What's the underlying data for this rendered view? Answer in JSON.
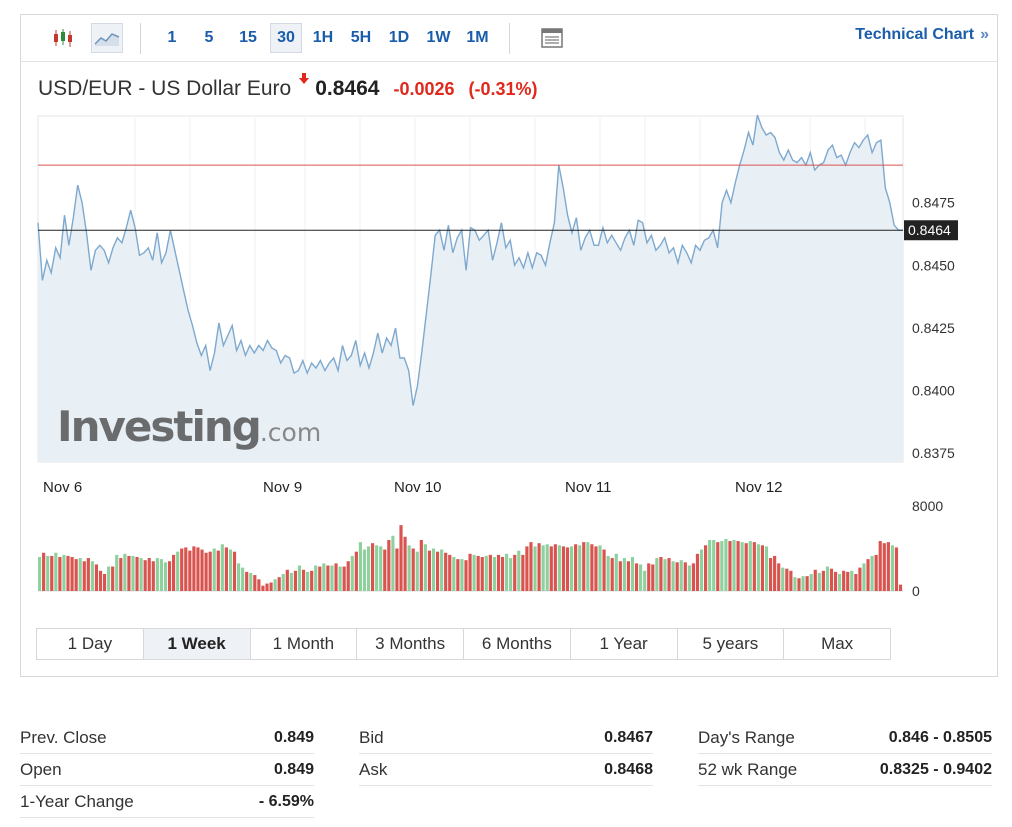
{
  "toolbar": {
    "intervals": [
      "1",
      "5",
      "15",
      "30",
      "1H",
      "5H",
      "1D",
      "1W",
      "1M"
    ],
    "active_interval": "30",
    "technical_chart_label": "Technical Chart",
    "icons": [
      "candlestick-icon",
      "area-chart-icon",
      "table-icon"
    ]
  },
  "quote": {
    "name": "USD/EUR - US Dollar Euro",
    "direction": "down",
    "last": "0.8464",
    "change": "-0.0026",
    "change_pct": "(-0.31%)"
  },
  "watermark": {
    "main": "Investing",
    "suffix": ".com"
  },
  "colors": {
    "up_volume": "#8fd19e",
    "down_volume": "#d9534f",
    "line": "#7ea9cf",
    "area": "#e8eff5",
    "prev_close_line": "#d9534f",
    "last_line": "#222222",
    "link": "#1a5dab",
    "negative": "#e0291c"
  },
  "chart_data": {
    "type": "area",
    "price": {
      "y_ticks": [
        0.8375,
        0.84,
        0.8425,
        0.845,
        0.8475
      ],
      "y_tick_labels": [
        "0.8375",
        "0.8400",
        "0.8425",
        "0.8450",
        "0.8475"
      ],
      "ylim": [
        0.83715,
        0.85096
      ],
      "prev_close_level": 0.849,
      "last_level": 0.8464,
      "last_label": "0.8464",
      "x_labels": [
        "Nov 6",
        "Nov 9",
        "Nov 10",
        "Nov 11",
        "Nov 12"
      ],
      "values": [
        0.8467,
        0.8444,
        0.8452,
        0.8447,
        0.8457,
        0.8453,
        0.847,
        0.8458,
        0.8469,
        0.8482,
        0.8475,
        0.8463,
        0.8448,
        0.8456,
        0.8458,
        0.8456,
        0.8451,
        0.8457,
        0.8461,
        0.8459,
        0.8465,
        0.8472,
        0.8465,
        0.8454,
        0.8455,
        0.8457,
        0.8452,
        0.8463,
        0.8451,
        0.8455,
        0.8464,
        0.8456,
        0.8448,
        0.844,
        0.8432,
        0.8426,
        0.8419,
        0.8414,
        0.8418,
        0.8408,
        0.8415,
        0.8427,
        0.8418,
        0.8422,
        0.8426,
        0.8416,
        0.842,
        0.8414,
        0.8418,
        0.8415,
        0.8418,
        0.8416,
        0.842,
        0.8417,
        0.8416,
        0.8411,
        0.8414,
        0.8413,
        0.8407,
        0.8408,
        0.8412,
        0.8407,
        0.8411,
        0.8409,
        0.8412,
        0.8408,
        0.8411,
        0.8413,
        0.8408,
        0.8418,
        0.8412,
        0.8414,
        0.842,
        0.841,
        0.8415,
        0.8409,
        0.8415,
        0.8423,
        0.8415,
        0.8421,
        0.8418,
        0.8425,
        0.8413,
        0.8413,
        0.8408,
        0.8394,
        0.8402,
        0.8416,
        0.8431,
        0.8446,
        0.8462,
        0.8464,
        0.8456,
        0.8466,
        0.8455,
        0.8461,
        0.8464,
        0.8448,
        0.8465,
        0.8464,
        0.846,
        0.8462,
        0.8464,
        0.8452,
        0.8459,
        0.8467,
        0.8457,
        0.846,
        0.845,
        0.8453,
        0.8449,
        0.8455,
        0.8449,
        0.8455,
        0.8454,
        0.845,
        0.8459,
        0.8467,
        0.849,
        0.8481,
        0.847,
        0.8463,
        0.8469,
        0.8456,
        0.8461,
        0.8464,
        0.8458,
        0.8458,
        0.8465,
        0.8459,
        0.8462,
        0.8459,
        0.8456,
        0.8461,
        0.8464,
        0.8458,
        0.8468,
        0.8467,
        0.8459,
        0.8462,
        0.8456,
        0.8458,
        0.8461,
        0.8455,
        0.8457,
        0.8451,
        0.8458,
        0.8455,
        0.8451,
        0.8458,
        0.8456,
        0.846,
        0.8461,
        0.8464,
        0.8457,
        0.8475,
        0.848,
        0.8475,
        0.8483,
        0.849,
        0.8496,
        0.8503,
        0.8498,
        0.851,
        0.8505,
        0.8502,
        0.8503,
        0.8501,
        0.8495,
        0.8492,
        0.8496,
        0.8492,
        0.8491,
        0.8493,
        0.849,
        0.8495,
        0.8488,
        0.849,
        0.8491,
        0.8496,
        0.8498,
        0.8493,
        0.8494,
        0.849,
        0.8495,
        0.8499,
        0.8497,
        0.85,
        0.8502,
        0.8495,
        0.8499,
        0.85,
        0.8481,
        0.8475,
        0.8466,
        0.8464,
        0.8464
      ]
    },
    "volume": {
      "y_ticks": [
        0,
        8000
      ],
      "y_tick_labels": [
        "0",
        "8000"
      ],
      "ylim": [
        0,
        8000
      ],
      "bars": [
        [
          3200,
          1
        ],
        [
          3600,
          0
        ],
        [
          3300,
          1
        ],
        [
          3300,
          0
        ],
        [
          3600,
          1
        ],
        [
          3200,
          0
        ],
        [
          3400,
          1
        ],
        [
          3300,
          0
        ],
        [
          3200,
          0
        ],
        [
          3000,
          0
        ],
        [
          3100,
          1
        ],
        [
          2800,
          0
        ],
        [
          3100,
          0
        ],
        [
          2800,
          1
        ],
        [
          2500,
          0
        ],
        [
          1900,
          0
        ],
        [
          1600,
          0
        ],
        [
          2300,
          1
        ],
        [
          2300,
          0
        ],
        [
          3400,
          1
        ],
        [
          3100,
          0
        ],
        [
          3500,
          1
        ],
        [
          3300,
          0
        ],
        [
          3300,
          1
        ],
        [
          3200,
          0
        ],
        [
          3100,
          1
        ],
        [
          2900,
          0
        ],
        [
          3100,
          0
        ],
        [
          2800,
          0
        ],
        [
          3100,
          1
        ],
        [
          3000,
          1
        ],
        [
          2700,
          1
        ],
        [
          2800,
          0
        ],
        [
          3400,
          0
        ],
        [
          3700,
          1
        ],
        [
          4000,
          0
        ],
        [
          4100,
          0
        ],
        [
          3800,
          0
        ],
        [
          4200,
          0
        ],
        [
          4100,
          0
        ],
        [
          3900,
          0
        ],
        [
          3600,
          0
        ],
        [
          3700,
          0
        ],
        [
          4000,
          1
        ],
        [
          3800,
          0
        ],
        [
          4400,
          1
        ],
        [
          4100,
          0
        ],
        [
          3900,
          1
        ],
        [
          3700,
          0
        ],
        [
          2600,
          1
        ],
        [
          2200,
          1
        ],
        [
          1800,
          0
        ],
        [
          1700,
          1
        ],
        [
          1500,
          0
        ],
        [
          1100,
          0
        ],
        [
          500,
          0
        ],
        [
          700,
          0
        ],
        [
          800,
          0
        ],
        [
          1100,
          1
        ],
        [
          1300,
          0
        ],
        [
          1600,
          1
        ],
        [
          2000,
          0
        ],
        [
          1700,
          1
        ],
        [
          1900,
          0
        ],
        [
          2400,
          1
        ],
        [
          2000,
          0
        ],
        [
          1800,
          1
        ],
        [
          1900,
          0
        ],
        [
          2400,
          1
        ],
        [
          2300,
          0
        ],
        [
          2600,
          1
        ],
        [
          2400,
          0
        ],
        [
          2400,
          1
        ],
        [
          2600,
          0
        ],
        [
          2300,
          1
        ],
        [
          2300,
          0
        ],
        [
          2800,
          0
        ],
        [
          3300,
          1
        ],
        [
          3700,
          0
        ],
        [
          4600,
          1
        ],
        [
          3900,
          1
        ],
        [
          4200,
          1
        ],
        [
          4500,
          0
        ],
        [
          4300,
          1
        ],
        [
          4200,
          1
        ],
        [
          3900,
          0
        ],
        [
          4800,
          0
        ],
        [
          5200,
          1
        ],
        [
          4000,
          0
        ],
        [
          6200,
          0
        ],
        [
          5100,
          0
        ],
        [
          4300,
          1
        ],
        [
          4000,
          0
        ],
        [
          3700,
          1
        ],
        [
          4800,
          0
        ],
        [
          4400,
          1
        ],
        [
          3800,
          0
        ],
        [
          4000,
          1
        ],
        [
          3700,
          0
        ],
        [
          3900,
          1
        ],
        [
          3600,
          0
        ],
        [
          3400,
          0
        ],
        [
          3200,
          1
        ],
        [
          3000,
          0
        ],
        [
          3000,
          1
        ],
        [
          2900,
          0
        ],
        [
          3500,
          0
        ],
        [
          3400,
          1
        ],
        [
          3300,
          0
        ],
        [
          3200,
          0
        ],
        [
          3300,
          1
        ],
        [
          3400,
          0
        ],
        [
          3200,
          1
        ],
        [
          3400,
          0
        ],
        [
          3200,
          0
        ],
        [
          3500,
          1
        ],
        [
          3100,
          1
        ],
        [
          3400,
          0
        ],
        [
          3800,
          1
        ],
        [
          3400,
          0
        ],
        [
          4200,
          0
        ],
        [
          4600,
          0
        ],
        [
          4200,
          1
        ],
        [
          4500,
          0
        ],
        [
          4300,
          1
        ],
        [
          4400,
          1
        ],
        [
          4200,
          0
        ],
        [
          4400,
          0
        ],
        [
          4300,
          1
        ],
        [
          4200,
          0
        ],
        [
          4100,
          0
        ],
        [
          4200,
          1
        ],
        [
          4400,
          0
        ],
        [
          4300,
          1
        ],
        [
          4600,
          0
        ],
        [
          4600,
          1
        ],
        [
          4400,
          0
        ],
        [
          4200,
          0
        ],
        [
          4300,
          1
        ],
        [
          3900,
          0
        ],
        [
          3300,
          1
        ],
        [
          3100,
          0
        ],
        [
          3500,
          1
        ],
        [
          2800,
          0
        ],
        [
          3100,
          1
        ],
        [
          2800,
          0
        ],
        [
          3200,
          1
        ],
        [
          2600,
          0
        ],
        [
          2500,
          1
        ],
        [
          1900,
          1
        ],
        [
          2600,
          0
        ],
        [
          2500,
          0
        ],
        [
          3100,
          1
        ],
        [
          3200,
          0
        ],
        [
          3000,
          1
        ],
        [
          3100,
          0
        ],
        [
          2800,
          1
        ],
        [
          2700,
          0
        ],
        [
          2900,
          1
        ],
        [
          2700,
          0
        ],
        [
          2400,
          1
        ],
        [
          2600,
          0
        ],
        [
          3500,
          0
        ],
        [
          3900,
          1
        ],
        [
          4300,
          0
        ],
        [
          4800,
          1
        ],
        [
          4800,
          1
        ],
        [
          4600,
          0
        ],
        [
          4700,
          1
        ],
        [
          4900,
          1
        ],
        [
          4700,
          0
        ],
        [
          4800,
          1
        ],
        [
          4700,
          0
        ],
        [
          4600,
          1
        ],
        [
          4500,
          0
        ],
        [
          4700,
          1
        ],
        [
          4600,
          0
        ],
        [
          4400,
          1
        ],
        [
          4300,
          0
        ],
        [
          4200,
          1
        ],
        [
          3100,
          0
        ],
        [
          3300,
          0
        ],
        [
          2600,
          0
        ],
        [
          2200,
          1
        ],
        [
          2100,
          0
        ],
        [
          1900,
          0
        ],
        [
          1300,
          1
        ],
        [
          1200,
          0
        ],
        [
          1400,
          1
        ],
        [
          1400,
          0
        ],
        [
          1600,
          1
        ],
        [
          2000,
          0
        ],
        [
          1700,
          1
        ],
        [
          1900,
          0
        ],
        [
          2300,
          1
        ],
        [
          2100,
          0
        ],
        [
          1800,
          0
        ],
        [
          1600,
          1
        ],
        [
          1900,
          0
        ],
        [
          1800,
          0
        ],
        [
          1900,
          1
        ],
        [
          1600,
          0
        ],
        [
          2200,
          0
        ],
        [
          2600,
          1
        ],
        [
          3000,
          0
        ],
        [
          3300,
          1
        ],
        [
          3400,
          0
        ],
        [
          4700,
          0
        ],
        [
          4500,
          0
        ],
        [
          4600,
          0
        ],
        [
          4300,
          1
        ],
        [
          4100,
          0
        ],
        [
          600,
          0
        ]
      ]
    }
  },
  "ranges": {
    "items": [
      "1 Day",
      "1 Week",
      "1 Month",
      "3 Months",
      "6 Months",
      "1 Year",
      "5 years",
      "Max"
    ],
    "active": "1 Week"
  },
  "stats": {
    "col1": [
      {
        "label": "Prev. Close",
        "value": "0.849"
      },
      {
        "label": "Open",
        "value": "0.849"
      },
      {
        "label": "1-Year Change",
        "value": "- 6.59%"
      }
    ],
    "col2": [
      {
        "label": "Bid",
        "value": "0.8467"
      },
      {
        "label": "Ask",
        "value": "0.8468"
      }
    ],
    "col3": [
      {
        "label": "Day's Range",
        "value": "0.846 - 0.8505"
      },
      {
        "label": "52 wk Range",
        "value": "0.8325 - 0.9402"
      }
    ]
  }
}
